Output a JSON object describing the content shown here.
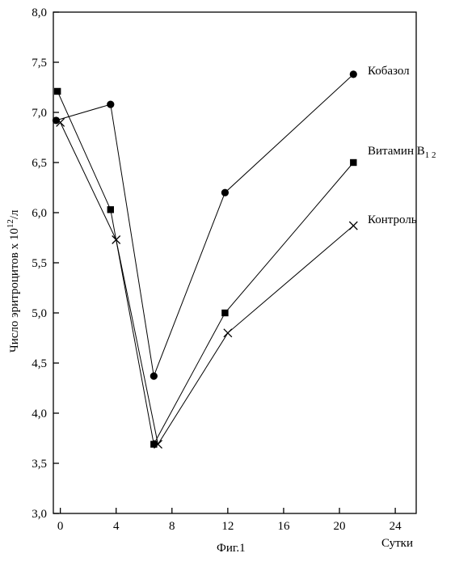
{
  "chart_data": {
    "type": "line",
    "title": "",
    "xlabel": "Сутки",
    "ylabel_main": "Число эритроцитов х 10",
    "ylabel_sup": "12",
    "ylabel_unit": "/л",
    "caption": "Фиг.1",
    "xlim": [
      -0.5,
      25.5
    ],
    "ylim": [
      3.0,
      8.0
    ],
    "xticks": [
      0,
      4,
      8,
      12,
      16,
      20,
      24
    ],
    "xtick_labels": [
      "0",
      "4",
      "8",
      "12",
      "16",
      "20",
      "24"
    ],
    "yticks": [
      3.0,
      3.5,
      4.0,
      4.5,
      5.0,
      5.5,
      6.0,
      6.5,
      7.0,
      7.5,
      8.0
    ],
    "ytick_labels": [
      "3,0",
      "3,5",
      "4,0",
      "4,5",
      "5,0",
      "5,5",
      "6,0",
      "6,5",
      "7,0",
      "7,5",
      "8,0"
    ],
    "grid": false,
    "series": [
      {
        "name": "Кобазол",
        "marker": "circle",
        "x": [
          -0.3,
          3.6,
          6.7,
          11.8,
          21.0
        ],
        "y": [
          6.92,
          7.08,
          4.37,
          6.2,
          7.38
        ]
      },
      {
        "name": "Витамин В",
        "name_sub": "1 2",
        "marker": "square",
        "x": [
          -0.2,
          3.6,
          6.7,
          11.8,
          21.0
        ],
        "y": [
          7.21,
          6.03,
          3.69,
          5.0,
          6.5
        ]
      },
      {
        "name": "Контроль",
        "marker": "cross",
        "x": [
          0.0,
          4.0,
          7.0,
          12.0,
          21.0
        ],
        "y": [
          6.9,
          5.73,
          3.69,
          4.8,
          5.87
        ]
      }
    ]
  }
}
